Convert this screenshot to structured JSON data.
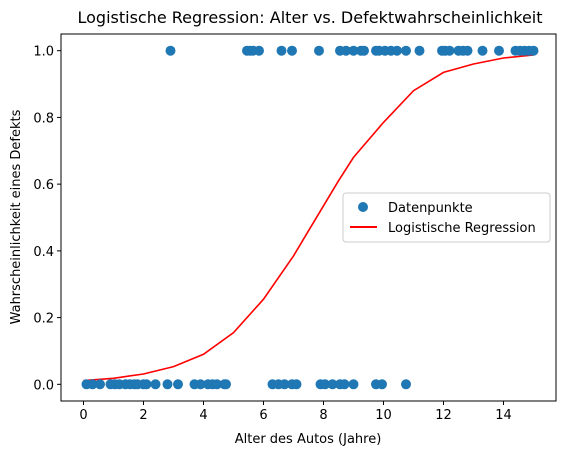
{
  "chart_data": {
    "type": "scatter",
    "title": "Logistische Regression: Alter vs. Defektwahrscheinlichkeit",
    "xlabel": "Alter des Autos (Jahre)",
    "ylabel": "Wahrscheinlichkeit eines Defekts",
    "xlim": [
      -0.75,
      15.75
    ],
    "ylim": [
      -0.05,
      1.05
    ],
    "x_ticks": [
      "0",
      "2",
      "4",
      "6",
      "8",
      "10",
      "12",
      "14"
    ],
    "x_tick_values": [
      0,
      2,
      4,
      6,
      8,
      10,
      12,
      14
    ],
    "y_ticks": [
      "0.0",
      "0.2",
      "0.4",
      "0.6",
      "0.8",
      "1.0"
    ],
    "y_tick_values": [
      0,
      0.2,
      0.4,
      0.6,
      0.8,
      1.0
    ],
    "grid": false,
    "legend_position": "center-right",
    "series": [
      {
        "name": "Datenpunkte",
        "kind": "scatter",
        "color": "#1f77b4",
        "points": [
          [
            0.1,
            0
          ],
          [
            0.3,
            0
          ],
          [
            0.55,
            0
          ],
          [
            0.9,
            0
          ],
          [
            1.05,
            0
          ],
          [
            1.2,
            0
          ],
          [
            1.4,
            0
          ],
          [
            1.55,
            0
          ],
          [
            1.7,
            0
          ],
          [
            1.8,
            0
          ],
          [
            2.0,
            0
          ],
          [
            2.1,
            0
          ],
          [
            2.4,
            0
          ],
          [
            2.8,
            0
          ],
          [
            3.15,
            0
          ],
          [
            3.7,
            0
          ],
          [
            3.9,
            0
          ],
          [
            4.15,
            0
          ],
          [
            4.3,
            0
          ],
          [
            4.45,
            0
          ],
          [
            4.7,
            0
          ],
          [
            4.75,
            0
          ],
          [
            6.3,
            0
          ],
          [
            6.5,
            0
          ],
          [
            6.7,
            0
          ],
          [
            6.95,
            0
          ],
          [
            7.1,
            0
          ],
          [
            7.9,
            0
          ],
          [
            8.05,
            0
          ],
          [
            8.3,
            0
          ],
          [
            8.55,
            0
          ],
          [
            8.7,
            0
          ],
          [
            9.0,
            0
          ],
          [
            9.75,
            0
          ],
          [
            9.95,
            0
          ],
          [
            10.75,
            0
          ],
          [
            2.9,
            1
          ],
          [
            5.45,
            1
          ],
          [
            5.55,
            1
          ],
          [
            5.65,
            1
          ],
          [
            5.85,
            1
          ],
          [
            6.6,
            1
          ],
          [
            6.95,
            1
          ],
          [
            7.85,
            1
          ],
          [
            8.55,
            1
          ],
          [
            8.75,
            1
          ],
          [
            9.0,
            1
          ],
          [
            9.25,
            1
          ],
          [
            9.35,
            1
          ],
          [
            9.75,
            1
          ],
          [
            9.85,
            1
          ],
          [
            10.05,
            1
          ],
          [
            10.25,
            1
          ],
          [
            10.45,
            1
          ],
          [
            10.75,
            1
          ],
          [
            11.2,
            1
          ],
          [
            11.95,
            1
          ],
          [
            12.05,
            1
          ],
          [
            12.2,
            1
          ],
          [
            12.5,
            1
          ],
          [
            12.65,
            1
          ],
          [
            12.8,
            1
          ],
          [
            13.3,
            1
          ],
          [
            13.85,
            1
          ],
          [
            14.4,
            1
          ],
          [
            14.55,
            1
          ],
          [
            14.7,
            1
          ],
          [
            14.85,
            1
          ],
          [
            15.0,
            1
          ]
        ]
      },
      {
        "name": "Logistische Regression",
        "kind": "line",
        "color": "#ff0000",
        "x": [
          0,
          1,
          2,
          3,
          4,
          5,
          6,
          7,
          7.5,
          8,
          8.5,
          9,
          10,
          11,
          12,
          13,
          14,
          15
        ],
        "y": [
          0.011,
          0.018,
          0.031,
          0.053,
          0.09,
          0.155,
          0.255,
          0.385,
          0.46,
          0.535,
          0.61,
          0.68,
          0.785,
          0.88,
          0.935,
          0.96,
          0.978,
          0.987
        ]
      }
    ]
  }
}
